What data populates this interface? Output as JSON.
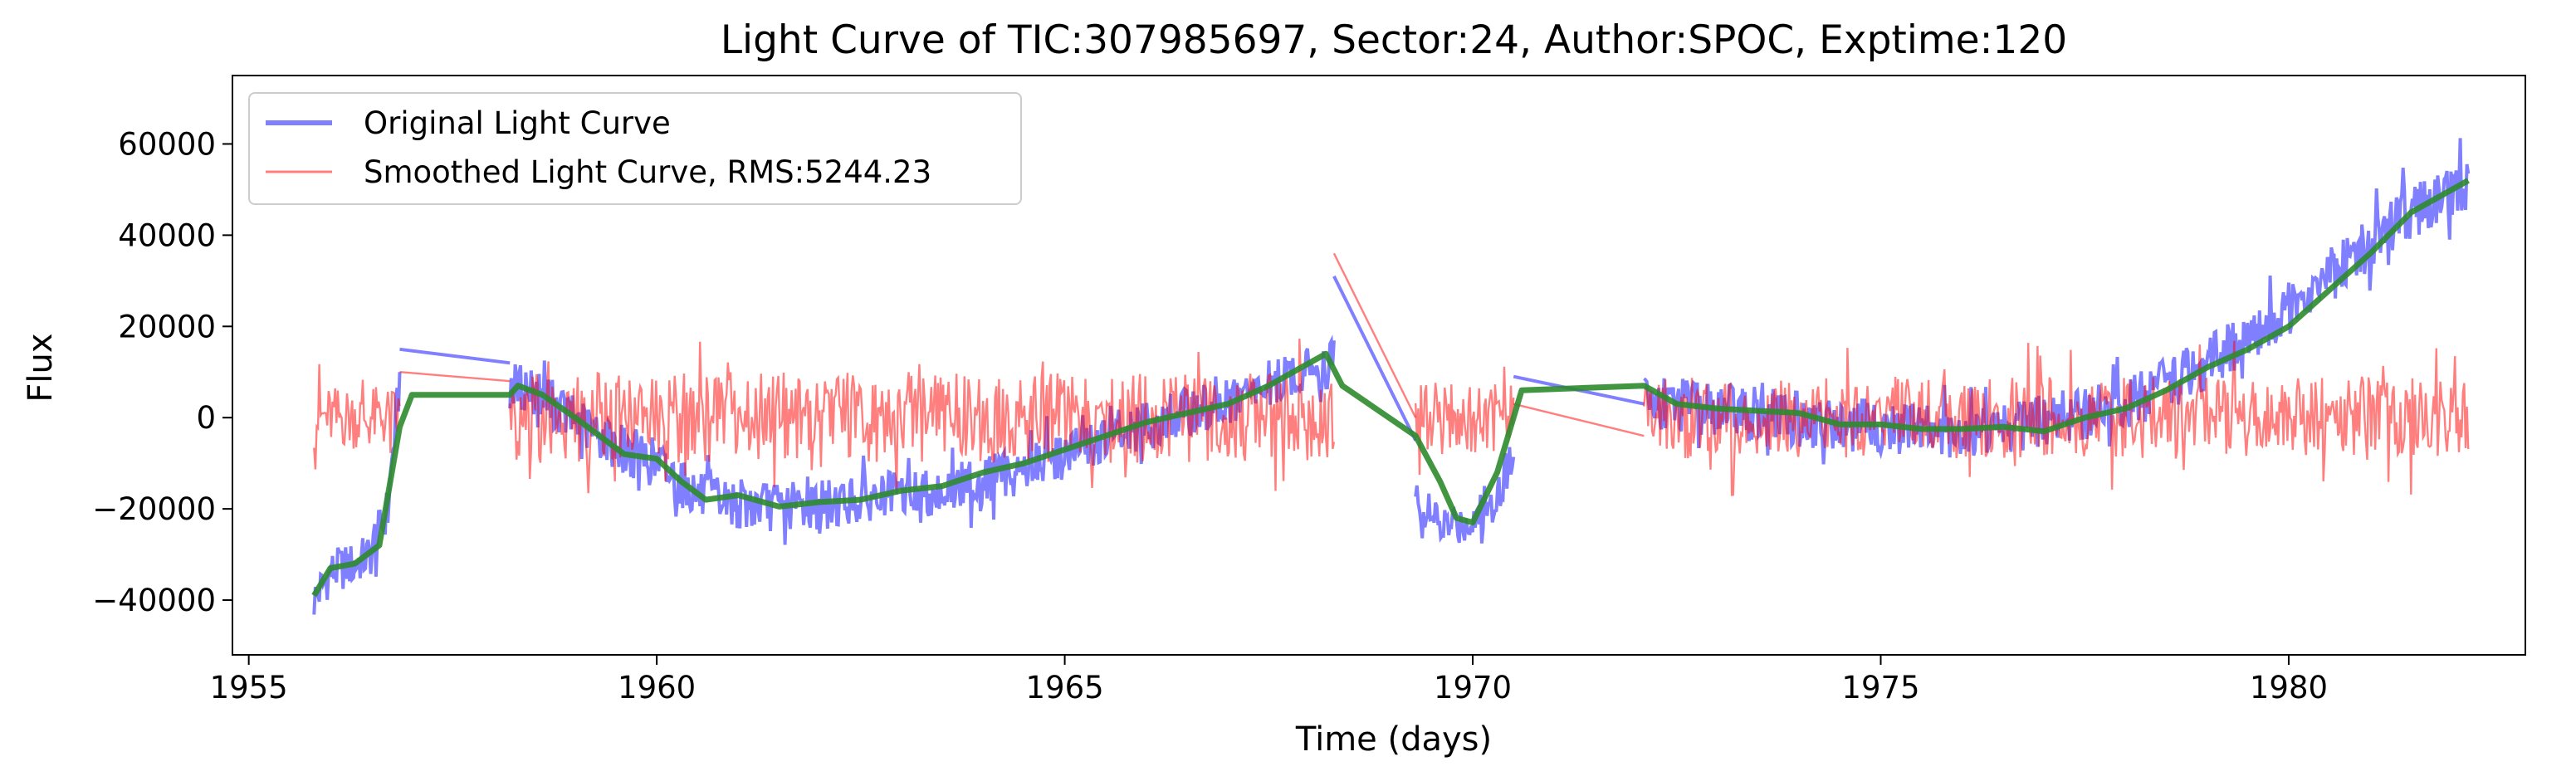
{
  "chart_data": {
    "type": "line",
    "title": "Light Curve of TIC:307985697, Sector:24, Author:SPOC, Exptime:120",
    "xlabel": "Time (days)",
    "ylabel": "Flux",
    "xlim": [
      1954.8,
      1982.9
    ],
    "ylim": [
      -52000,
      75000
    ],
    "grid": false,
    "legend_position": "top-left",
    "x_ticks": [
      1955,
      1960,
      1965,
      1970,
      1975,
      1980
    ],
    "x_tick_labels": [
      "1955",
      "1960",
      "1965",
      "1970",
      "1975",
      "1980"
    ],
    "y_ticks": [
      -40000,
      -20000,
      0,
      20000,
      40000,
      60000
    ],
    "y_tick_labels": [
      "−40000",
      "−20000",
      "0",
      "20000",
      "40000",
      "60000"
    ],
    "series": [
      {
        "name": "Original Light Curve",
        "color": "#0000ff",
        "opacity": 0.5,
        "style": "band",
        "segments": [
          {
            "x": [
              1955.8,
              1956.0,
              1956.3,
              1956.5,
              1956.7,
              1956.85
            ],
            "y": [
              -40000,
              -34000,
              -32000,
              -30000,
              -20000,
              8000
            ],
            "spread": 5000
          },
          {
            "x": [
              1956.85,
              1958.2
            ],
            "y": [
              15000,
              12000
            ],
            "spread": 0
          },
          {
            "x": [
              1958.2,
              1958.5,
              1958.8,
              1959.2,
              1959.6,
              1960.0,
              1960.5,
              1961.0,
              1961.5,
              1962.0,
              1962.5,
              1963.0,
              1963.5,
              1964.0,
              1964.5,
              1965.0,
              1965.5,
              1966.0,
              1966.5,
              1967.0,
              1967.5,
              1967.9,
              1968.3
            ],
            "y": [
              7000,
              6000,
              2000,
              -3000,
              -7000,
              -10000,
              -17000,
              -19000,
              -19500,
              -19000,
              -18000,
              -17000,
              -16000,
              -14000,
              -11000,
              -8000,
              -5000,
              -2000,
              1000,
              3000,
              7000,
              10000,
              12000
            ],
            "spread": 5500
          },
          {
            "x": [
              1968.3,
              1969.3
            ],
            "y": [
              31000,
              -5000
            ],
            "spread": 0
          },
          {
            "x": [
              1969.3,
              1969.6,
              1969.9,
              1970.2,
              1970.5
            ],
            "y": [
              -18000,
              -24000,
              -23000,
              -20000,
              -8000
            ],
            "spread": 5000
          },
          {
            "x": [
              1970.5,
              1972.1
            ],
            "y": [
              9000,
              3000
            ],
            "spread": 0
          },
          {
            "x": [
              1972.1,
              1972.8,
              1973.5,
              1974.2,
              1975.0,
              1975.8,
              1976.5,
              1977.2,
              1977.8,
              1978.4,
              1979.0,
              1979.5,
              1980.0,
              1980.5,
              1981.0,
              1981.5,
              1982.2
            ],
            "y": [
              4000,
              2000,
              1000,
              -1000,
              -2000,
              -3000,
              -2000,
              0,
              2000,
              6000,
              12000,
              17000,
              24000,
              31000,
              38000,
              45000,
              52000
            ],
            "spread": 6000
          }
        ]
      },
      {
        "name": "Smoothed Light Curve, RMS:5244.23",
        "color": "#ff0000",
        "opacity": 0.5,
        "style": "band",
        "segments": [
          {
            "x": [
              1955.8,
              1956.85
            ],
            "y": [
              0,
              0
            ],
            "spread": 7000
          },
          {
            "x": [
              1956.85,
              1958.2
            ],
            "y": [
              10000,
              8000
            ],
            "spread": 0
          },
          {
            "x": [
              1958.2,
              1968.3
            ],
            "y": [
              0,
              0
            ],
            "spread": 10000
          },
          {
            "x": [
              1968.3,
              1969.3
            ],
            "y": [
              36000,
              0
            ],
            "spread": 0
          },
          {
            "x": [
              1969.3,
              1970.5
            ],
            "y": [
              0,
              0
            ],
            "spread": 8000
          },
          {
            "x": [
              1970.5,
              1972.1
            ],
            "y": [
              3000,
              -4000
            ],
            "spread": 0
          },
          {
            "x": [
              1972.1,
              1982.2
            ],
            "y": [
              0,
              0
            ],
            "spread": 9000
          }
        ]
      },
      {
        "name": "",
        "color": "#2e8b2e",
        "opacity": 0.9,
        "style": "line",
        "x": [
          1955.8,
          1956.0,
          1956.3,
          1956.6,
          1956.85,
          1957.0,
          1958.2,
          1958.3,
          1958.6,
          1959.0,
          1959.3,
          1959.6,
          1960.0,
          1960.3,
          1960.6,
          1961.0,
          1961.5,
          1962.0,
          1962.5,
          1963.0,
          1963.5,
          1964.0,
          1964.5,
          1965.0,
          1965.5,
          1966.0,
          1966.5,
          1967.0,
          1967.5,
          1967.9,
          1968.2,
          1968.4,
          1969.3,
          1969.6,
          1969.8,
          1970.0,
          1970.3,
          1970.6,
          1972.1,
          1972.5,
          1973.0,
          1973.5,
          1974.0,
          1974.5,
          1975.0,
          1975.5,
          1976.0,
          1976.5,
          1977.0,
          1977.5,
          1978.0,
          1978.5,
          1979.0,
          1979.5,
          1980.0,
          1980.5,
          1981.0,
          1981.5,
          1982.2
        ],
        "y": [
          -39000,
          -33000,
          -32000,
          -28000,
          -2000,
          5000,
          5000,
          7000,
          5000,
          0,
          -4000,
          -8000,
          -9000,
          -14000,
          -18000,
          -17000,
          -19500,
          -18500,
          -18000,
          -16000,
          -15000,
          -12000,
          -10000,
          -7000,
          -4000,
          -1000,
          1000,
          3000,
          7000,
          11000,
          14000,
          7000,
          -4000,
          -14000,
          -22000,
          -23000,
          -12000,
          6000,
          7000,
          3000,
          2000,
          1500,
          1000,
          -1500,
          -1500,
          -2500,
          -2500,
          -2000,
          -3000,
          0,
          2000,
          6000,
          11000,
          15000,
          20000,
          28000,
          36000,
          45000,
          52000
        ]
      }
    ]
  }
}
